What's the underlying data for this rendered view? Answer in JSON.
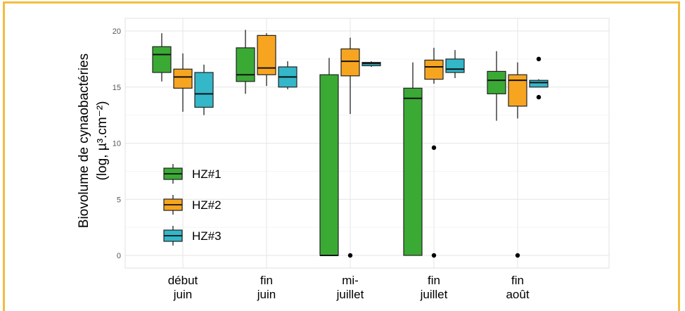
{
  "chart_data": {
    "type": "boxplot",
    "ylabel_line1": "Biovolume de cynaobactéries",
    "ylabel_line2": "(log, µ³.cm⁻²)",
    "xlabel": "",
    "ylim": [
      0,
      20
    ],
    "yticks": [
      "0",
      "5",
      "10",
      "15",
      "20"
    ],
    "grid": true,
    "legend_position": "left-inside",
    "categories": [
      [
        "début",
        "juin"
      ],
      [
        "fin",
        "juin"
      ],
      [
        "mi-",
        "juillet"
      ],
      [
        "fin",
        "juillet"
      ],
      [
        "fin",
        "août"
      ]
    ],
    "series": [
      {
        "name": "HZ#1",
        "color": "#3aaa35",
        "boxes": [
          {
            "whisker_low": 15.5,
            "q1": 16.3,
            "median": 17.9,
            "q3": 18.6,
            "whisker_high": 19.8,
            "outliers": []
          },
          {
            "whisker_low": 14.4,
            "q1": 15.5,
            "median": 16.1,
            "q3": 18.5,
            "whisker_high": 20.1,
            "outliers": []
          },
          {
            "whisker_low": 0,
            "q1": 0,
            "median": 0,
            "q3": 16.1,
            "whisker_high": 17.6,
            "outliers": []
          },
          {
            "whisker_low": 0,
            "q1": 0,
            "median": 14.0,
            "q3": 14.9,
            "whisker_high": 17.2,
            "outliers": []
          },
          {
            "whisker_low": 12.0,
            "q1": 14.4,
            "median": 15.6,
            "q3": 16.4,
            "whisker_high": 18.2,
            "outliers": []
          }
        ]
      },
      {
        "name": "HZ#2",
        "color": "#f7a520",
        "boxes": [
          {
            "whisker_low": 12.8,
            "q1": 14.9,
            "median": 15.9,
            "q3": 16.6,
            "whisker_high": 18.0,
            "outliers": []
          },
          {
            "whisker_low": 15.1,
            "q1": 16.1,
            "median": 16.7,
            "q3": 19.6,
            "whisker_high": 19.8,
            "outliers": []
          },
          {
            "whisker_low": 12.6,
            "q1": 16.0,
            "median": 17.3,
            "q3": 18.4,
            "whisker_high": 19.4,
            "outliers": [
              0
            ]
          },
          {
            "whisker_low": 15.3,
            "q1": 15.7,
            "median": 16.8,
            "q3": 17.4,
            "whisker_high": 18.5,
            "outliers": [
              9.6,
              0
            ]
          },
          {
            "whisker_low": 12.2,
            "q1": 13.3,
            "median": 15.6,
            "q3": 16.1,
            "whisker_high": 17.2,
            "outliers": [
              0
            ]
          }
        ]
      },
      {
        "name": "HZ#3",
        "color": "#33b7c9",
        "boxes": [
          {
            "whisker_low": 12.5,
            "q1": 13.2,
            "median": 14.4,
            "q3": 16.3,
            "whisker_high": 17.0,
            "outliers": []
          },
          {
            "whisker_low": 14.8,
            "q1": 15.0,
            "median": 15.9,
            "q3": 16.8,
            "whisker_high": 17.3,
            "outliers": []
          },
          {
            "whisker_low": 16.8,
            "q1": 16.9,
            "median": 17.1,
            "q3": 17.2,
            "whisker_high": 17.3,
            "outliers": []
          },
          {
            "whisker_low": 15.8,
            "q1": 16.3,
            "median": 16.6,
            "q3": 17.5,
            "whisker_high": 18.3,
            "outliers": []
          },
          {
            "whisker_low": 15.0,
            "q1": 15.0,
            "median": 15.4,
            "q3": 15.6,
            "whisker_high": 15.7,
            "outliers": [
              17.5,
              14.1
            ]
          }
        ]
      }
    ]
  }
}
